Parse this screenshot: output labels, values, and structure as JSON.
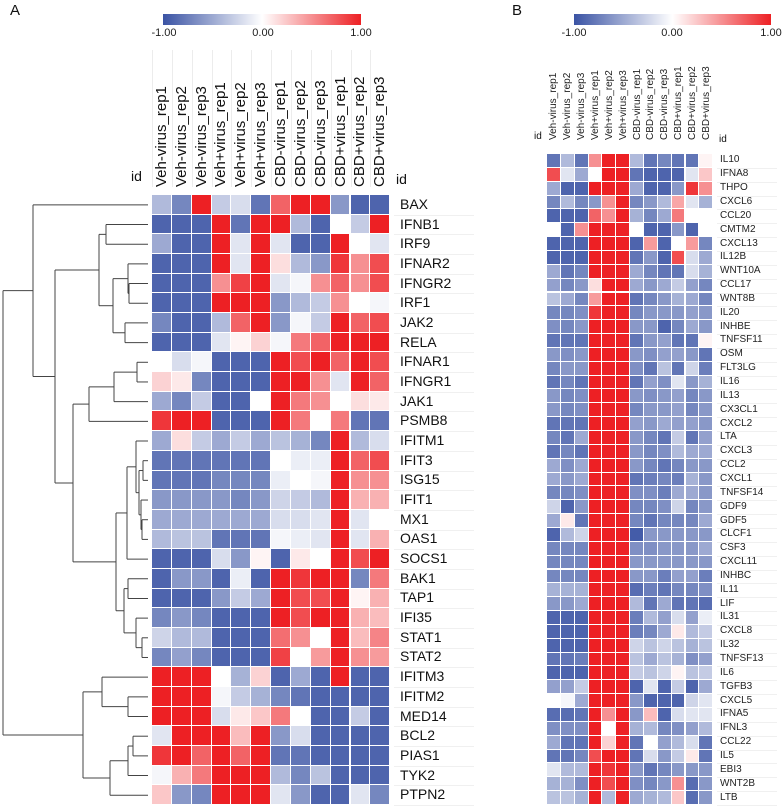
{
  "panels": {
    "a_label": "A",
    "b_label": "B"
  },
  "colors": {
    "low": "#3a53a4",
    "mid": "#ffffff",
    "high": "#ed2024"
  },
  "colorbar": {
    "min_label": "-1.00",
    "mid_label": "0.00",
    "max_label": "1.00",
    "range": [
      -1,
      1
    ]
  },
  "id_label": "id",
  "chart_data": [
    {
      "type": "heatmap",
      "panel": "A",
      "dendrogram": "rows",
      "columns": [
        "Veh-virus_rep1",
        "Veh-virus_rep2",
        "Veh-virus_rep3",
        "Veh+virus_rep1",
        "Veh+virus_rep2",
        "Veh+virus_rep3",
        "CBD-virus_rep1",
        "CBD-virus_rep2",
        "CBD-virus_rep3",
        "CBD+virus_rep1",
        "CBD+virus_rep2",
        "CBD+virus_rep3"
      ],
      "rows": [
        "BAX",
        "IFNB1",
        "IRF9",
        "IFNAR2",
        "IFNGR2",
        "IRF1",
        "JAK2",
        "RELA",
        "IFNAR1",
        "IFNGR1",
        "JAK1",
        "PSMB8",
        "IFITM1",
        "IFIT3",
        "ISG15",
        "IFIT1",
        "MX1",
        "OAS1",
        "SOCS1",
        "BAK1",
        "TAP1",
        "IFI35",
        "STAT1",
        "STAT2",
        "IFITM3",
        "IFITM2",
        "MED14",
        "BCL2",
        "PIAS1",
        "TYK2",
        "PTPN2"
      ],
      "values": [
        [
          -0.4,
          -0.7,
          1,
          -0.3,
          -0.2,
          -0.8,
          0.7,
          1,
          1,
          -0.6,
          -0.9,
          -0.9
        ],
        [
          -0.9,
          -0.9,
          -0.9,
          1,
          -0.8,
          1,
          1,
          -0.4,
          -0.9,
          0,
          -0.3,
          1
        ],
        [
          -0.5,
          -0.9,
          -0.9,
          1,
          -0.15,
          1,
          -0.15,
          -0.9,
          -0.9,
          1,
          0,
          -0.15
        ],
        [
          -0.9,
          -0.9,
          -0.9,
          1,
          -0.15,
          1,
          0.15,
          -0.4,
          -0.6,
          0.9,
          0.5,
          0.8
        ],
        [
          -0.9,
          -0.9,
          -0.9,
          0.5,
          0.85,
          1,
          -0.15,
          -0.05,
          0.5,
          0.7,
          0.5,
          0.8
        ],
        [
          -0.9,
          -0.9,
          -0.9,
          1,
          1,
          1,
          -0.6,
          -0.4,
          -0.3,
          0.5,
          0,
          -0.05
        ],
        [
          -0.7,
          -0.9,
          -0.9,
          -0.4,
          0.7,
          1,
          -0.6,
          -0.05,
          -0.3,
          1,
          0.7,
          0.8
        ],
        [
          -0.9,
          -0.9,
          -0.9,
          -0.15,
          0.05,
          0.2,
          -0.05,
          0.6,
          0.7,
          1,
          1,
          1
        ],
        [
          0,
          -0.2,
          -0.05,
          -0.9,
          -0.9,
          -0.9,
          1,
          0.8,
          1,
          0.7,
          1,
          0.8
        ],
        [
          0.2,
          0.1,
          -0.7,
          -0.9,
          -0.9,
          -0.9,
          1,
          1,
          0.5,
          -0.15,
          1,
          0.7
        ],
        [
          -0.5,
          -0.7,
          -0.3,
          -0.9,
          -0.9,
          0,
          1,
          0.6,
          0.5,
          0,
          0.15,
          0.1
        ],
        [
          0.9,
          1,
          1,
          -0.9,
          -0.9,
          -0.9,
          1,
          0.6,
          0,
          0.6,
          -0.8,
          -0.8
        ],
        [
          -0.5,
          0.15,
          -0.3,
          -0.5,
          -0.3,
          -0.5,
          -0.35,
          -0.45,
          -0.7,
          1,
          -0.4,
          -0.2
        ],
        [
          -0.8,
          -0.8,
          -0.8,
          -0.8,
          -0.8,
          -0.8,
          0,
          -0.1,
          -0.1,
          1,
          0.7,
          0.8
        ],
        [
          -0.8,
          -0.8,
          -0.8,
          -0.7,
          -0.7,
          -0.7,
          -0.1,
          0,
          -0.05,
          1,
          0.5,
          0.5
        ],
        [
          -0.6,
          -0.6,
          -0.6,
          -0.6,
          -0.7,
          -0.6,
          -0.25,
          -0.3,
          -0.4,
          1,
          0.35,
          0.35
        ],
        [
          -0.5,
          -0.5,
          -0.5,
          -0.5,
          -0.5,
          -0.5,
          -0.2,
          -0.2,
          -0.15,
          1,
          -0.15,
          0
        ],
        [
          -0.4,
          -0.35,
          -0.35,
          -0.8,
          -0.8,
          -0.8,
          -0.05,
          -0.1,
          -0.15,
          1,
          -0.15,
          0.35
        ],
        [
          -0.9,
          -0.9,
          -0.9,
          -0.2,
          -0.6,
          0.05,
          -0.9,
          0.1,
          0,
          1,
          0.8,
          1
        ],
        [
          -0.9,
          -0.6,
          -0.6,
          -0.9,
          -0.1,
          -0.9,
          1,
          0.9,
          1,
          1,
          -0.7,
          0.6
        ],
        [
          -0.9,
          -0.9,
          -0.9,
          -0.6,
          -0.3,
          -0.5,
          1,
          0.8,
          0.8,
          1,
          0.05,
          0.35
        ],
        [
          -0.7,
          -0.6,
          -0.7,
          -0.9,
          -0.9,
          -0.9,
          1,
          0.8,
          1,
          1,
          0.35,
          0.3
        ],
        [
          -0.25,
          -0.4,
          -0.4,
          -0.9,
          -0.9,
          -0.9,
          0.65,
          0.5,
          0,
          1,
          0.3,
          0.55
        ],
        [
          -0.7,
          -0.55,
          -0.7,
          -0.9,
          -0.9,
          -0.9,
          0.85,
          0,
          0.45,
          1,
          0.5,
          0.45
        ],
        [
          1,
          1,
          1,
          0,
          -0.45,
          0.2,
          -0.9,
          -0.5,
          -0.9,
          1,
          -0.9,
          -0.9
        ],
        [
          1,
          1,
          1,
          -0.05,
          -0.3,
          -0.45,
          -0.7,
          -0.8,
          -0.9,
          -0.9,
          -0.9,
          -0.9
        ],
        [
          1,
          1,
          1,
          -0.2,
          0.1,
          0.25,
          0.6,
          0,
          -0.9,
          -0.9,
          -0.3,
          -0.9
        ],
        [
          -0.15,
          1,
          1,
          1,
          0.3,
          1,
          -0.6,
          -0.2,
          -0.9,
          -0.9,
          -0.9,
          -0.9
        ],
        [
          0.9,
          1,
          0.7,
          1,
          0.7,
          1,
          -0.8,
          -0.8,
          -0.9,
          -0.9,
          -0.9,
          -0.9
        ],
        [
          -0.05,
          0.35,
          0.6,
          1,
          1,
          1,
          -0.4,
          -0.7,
          -0.35,
          -0.9,
          -0.9,
          -0.9
        ],
        [
          0.25,
          -0.6,
          -0.7,
          1,
          1,
          1,
          -0.15,
          -0.6,
          -0.9,
          -0.9,
          -0.15,
          -0.7
        ]
      ]
    },
    {
      "type": "heatmap",
      "panel": "B",
      "columns": [
        "Veh-virus_rep1",
        "Veh-virus_rep2",
        "Veh-virus_rep3",
        "Veh+virus_rep1",
        "Veh+virus_rep2",
        "Veh+virus_rep3",
        "CBD-virus_rep1",
        "CBD-virus_rep2",
        "CBD-virus_rep3",
        "CBD+virus_rep1",
        "CBD+virus_rep2",
        "CBD+virus_rep3"
      ],
      "rows": [
        "IL10",
        "IFNA8",
        "THPO",
        "CXCL6",
        "CCL20",
        "CMTM2",
        "CXCL13",
        "IL12B",
        "WNT10A",
        "CCL17",
        "WNT8B",
        "IL20",
        "INHBE",
        "TNFSF11",
        "OSM",
        "FLT3LG",
        "IL16",
        "IL13",
        "CX3CL1",
        "CXCL2",
        "LTA",
        "CXCL3",
        "CCL2",
        "CXCL1",
        "TNFSF14",
        "GDF9",
        "GDF5",
        "CLCF1",
        "CSF3",
        "CXCL11",
        "INHBC",
        "IL11",
        "LIF",
        "IL31",
        "CXCL8",
        "IL32",
        "TNFSF13",
        "IL6",
        "TGFB3",
        "CXCL5",
        "IFNA5",
        "IFNL3",
        "CCL22",
        "IL5",
        "EBI3",
        "WNT2B",
        "LTB"
      ],
      "values": [
        [
          -0.8,
          -0.4,
          -0.8,
          0.5,
          1,
          1,
          -0.4,
          -0.8,
          -0.7,
          -0.8,
          -0.8,
          0.05
        ],
        [
          0.8,
          -0.15,
          -0.5,
          0,
          1,
          1,
          -0.8,
          -0.9,
          -0.9,
          -0.9,
          -0.15,
          0.25
        ],
        [
          -0.5,
          -0.9,
          -0.9,
          1,
          1,
          1,
          -0.5,
          -0.9,
          -0.9,
          -0.6,
          0.9,
          0.5
        ],
        [
          -0.7,
          -0.4,
          -0.7,
          -0.6,
          0.5,
          1,
          -0.7,
          -0.6,
          -0.4,
          0.4,
          -0.15,
          -0.45
        ],
        [
          -0.9,
          -0.9,
          -0.9,
          0.7,
          0.5,
          1,
          -0.45,
          -0.7,
          -0.5,
          0.6,
          0,
          0
        ],
        [
          0,
          -0.9,
          0.5,
          1,
          1,
          1,
          0,
          -0.9,
          -0.9,
          -0.6,
          -0.9,
          0
        ],
        [
          -0.9,
          -0.9,
          -0.9,
          1,
          1,
          1,
          -0.9,
          0.45,
          -0.9,
          0,
          0.45,
          -0.7
        ],
        [
          -0.9,
          -0.9,
          -0.9,
          1,
          1,
          1,
          -0.8,
          -0.6,
          -0.9,
          0.8,
          -0.2,
          -0.5
        ],
        [
          -0.5,
          -0.8,
          -0.7,
          1,
          1,
          1,
          -0.5,
          -0.7,
          -0.8,
          -0.8,
          -0.2,
          -0.45
        ],
        [
          -0.55,
          -0.7,
          -0.6,
          0.15,
          1,
          1,
          -0.5,
          -0.6,
          -0.5,
          -0.3,
          -0.55,
          -0.7
        ],
        [
          -0.35,
          -0.5,
          -0.7,
          0.45,
          1,
          1,
          -0.8,
          -0.7,
          -0.6,
          -0.45,
          -0.5,
          -0.7
        ],
        [
          -0.7,
          -0.7,
          -0.65,
          0.9,
          1,
          1,
          -0.7,
          -0.6,
          -0.6,
          -0.6,
          -0.55,
          -0.6
        ],
        [
          -0.65,
          -0.7,
          -0.6,
          1,
          1,
          1,
          -0.6,
          -0.6,
          -0.9,
          -0.7,
          -0.5,
          -0.6
        ],
        [
          -0.8,
          -0.8,
          -0.8,
          1,
          1,
          1,
          -0.8,
          -0.6,
          -0.55,
          -0.8,
          -0.8,
          0.05
        ],
        [
          -0.6,
          -0.65,
          -0.6,
          1,
          1,
          1,
          -0.6,
          -0.65,
          -0.55,
          -0.55,
          -0.6,
          -0.8
        ],
        [
          -0.7,
          -0.6,
          -0.6,
          1,
          1,
          1,
          -0.65,
          -0.8,
          -0.35,
          -0.8,
          -0.25,
          -0.75
        ],
        [
          -0.8,
          -0.7,
          -0.8,
          1,
          1,
          1,
          -0.8,
          -0.55,
          -0.65,
          -0.15,
          -0.6,
          -0.45
        ],
        [
          -0.6,
          -0.7,
          -0.65,
          1,
          1,
          1,
          -0.6,
          -0.65,
          -0.6,
          -0.55,
          -0.7,
          -0.6
        ],
        [
          -0.6,
          -0.7,
          -0.65,
          1,
          1,
          1,
          -0.7,
          -0.6,
          -0.6,
          -0.55,
          -0.7,
          -0.6
        ],
        [
          -0.8,
          -0.8,
          -0.8,
          1,
          1,
          1,
          -0.55,
          -0.6,
          -0.5,
          -0.55,
          -0.55,
          -0.6
        ],
        [
          -0.7,
          -0.8,
          -0.5,
          1,
          1,
          1,
          -0.6,
          -0.7,
          -0.8,
          -0.3,
          -0.8,
          -0.55
        ],
        [
          -0.8,
          -0.7,
          -0.8,
          1,
          1,
          1,
          -0.6,
          -0.7,
          -0.65,
          -0.4,
          -0.5,
          -0.5
        ],
        [
          -0.5,
          -0.65,
          -0.5,
          1,
          1,
          1,
          -0.6,
          -0.7,
          -0.8,
          -0.7,
          -0.6,
          -0.6
        ],
        [
          -0.5,
          -0.6,
          -0.5,
          1,
          1,
          1,
          -0.8,
          -0.75,
          -0.7,
          -0.75,
          -0.45,
          -0.6
        ],
        [
          -0.7,
          -0.7,
          -0.65,
          1,
          1,
          1,
          -0.65,
          -0.65,
          -0.75,
          -0.5,
          -0.5,
          -0.6
        ],
        [
          -0.25,
          -0.9,
          -0.6,
          1,
          1,
          1,
          -0.7,
          -0.7,
          -0.65,
          -0.25,
          -0.7,
          -0.6
        ],
        [
          -0.5,
          0.1,
          -0.8,
          1,
          1,
          1,
          -0.7,
          -0.8,
          -0.7,
          -0.7,
          -0.7,
          -0.5
        ],
        [
          -0.9,
          -0.4,
          -0.25,
          1,
          1,
          1,
          -0.95,
          -0.6,
          -0.6,
          -0.6,
          -0.6,
          -0.6
        ],
        [
          -0.7,
          -0.7,
          -0.7,
          1,
          1,
          1,
          -0.65,
          -0.65,
          -0.6,
          -0.6,
          -0.6,
          -0.5
        ],
        [
          -0.7,
          -0.7,
          -0.7,
          1,
          1,
          1,
          -0.6,
          -0.6,
          -0.6,
          -0.6,
          -0.6,
          -0.6
        ],
        [
          -0.7,
          -0.7,
          -0.7,
          1,
          1,
          1,
          -0.6,
          -0.6,
          -0.75,
          -0.55,
          -0.55,
          -0.75
        ],
        [
          -0.45,
          -0.45,
          -0.45,
          1,
          1,
          1,
          -0.85,
          -0.75,
          -0.8,
          -0.7,
          -0.7,
          -0.65
        ],
        [
          -0.6,
          -0.6,
          -0.5,
          1,
          1,
          1,
          -0.4,
          -0.8,
          -0.5,
          -0.8,
          -0.8,
          -0.85
        ],
        [
          -0.9,
          -0.9,
          -0.9,
          1,
          1,
          1,
          -0.75,
          -0.4,
          -0.55,
          -0.2,
          -0.55,
          -0.1
        ],
        [
          -0.9,
          -0.9,
          -0.9,
          1,
          1,
          1,
          -0.75,
          -0.7,
          -0.5,
          0.1,
          -0.4,
          -0.3
        ],
        [
          -0.9,
          -0.9,
          -0.9,
          1,
          1,
          1,
          -0.25,
          -0.35,
          -0.25,
          -0.35,
          -0.45,
          -0.35
        ],
        [
          -0.8,
          -0.8,
          -0.75,
          1,
          1,
          1,
          -0.35,
          -0.5,
          -0.35,
          -0.45,
          -0.65,
          -0.55
        ],
        [
          -0.9,
          -0.9,
          -0.9,
          1,
          1,
          1,
          -0.3,
          -0.35,
          -0.25,
          0.05,
          -0.35,
          -0.3
        ],
        [
          -0.55,
          -0.55,
          -0.3,
          1,
          1,
          1,
          -0.9,
          -0.15,
          -0.9,
          -0.3,
          -0.9,
          -0.5
        ],
        [
          0,
          -0.05,
          -0.5,
          1,
          1,
          1,
          -0.6,
          -0.9,
          -0.9,
          -0.9,
          -0.25,
          -0.15
        ],
        [
          -0.85,
          -0.85,
          -0.8,
          1,
          0.5,
          1,
          -0.6,
          0.3,
          -0.9,
          -0.2,
          -0.15,
          -0.15
        ],
        [
          -0.65,
          -0.65,
          -0.65,
          1,
          0,
          1,
          -0.45,
          -0.4,
          -0.7,
          -0.65,
          -0.55,
          -0.4
        ],
        [
          -0.5,
          -0.8,
          -0.8,
          1,
          0.2,
          1,
          -0.8,
          0,
          -0.55,
          -0.4,
          -0.2,
          -0.8
        ],
        [
          -0.8,
          -0.8,
          -0.7,
          0.8,
          1,
          1,
          -0.8,
          -0.2,
          -0.6,
          -0.3,
          0.1,
          -0.8
        ],
        [
          -0.15,
          -0.4,
          -0.4,
          1,
          0.9,
          1,
          -0.6,
          -0.8,
          -0.7,
          -0.6,
          -0.6,
          -0.6
        ],
        [
          -0.45,
          -0.45,
          -0.65,
          1,
          0.8,
          1,
          -0.65,
          -0.7,
          -0.6,
          0.5,
          -0.85,
          -0.6
        ],
        [
          -0.35,
          -0.35,
          -0.45,
          1,
          -0.4,
          1,
          -0.5,
          -0.45,
          -0.4,
          0.25,
          -0.85,
          -0.6
        ]
      ]
    }
  ]
}
